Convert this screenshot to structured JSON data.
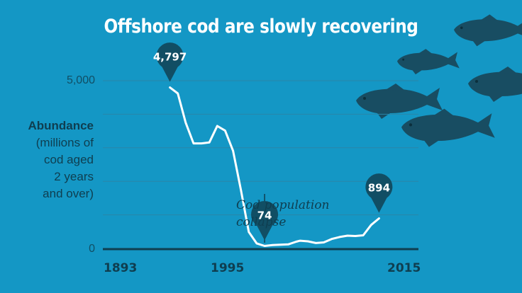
{
  "chart_data": {
    "type": "line",
    "title": "Offshore cod are slowly recovering",
    "ylabel_bold": "Abundance",
    "ylabel_lines": [
      "(millions of",
      "cod aged",
      "2 years",
      "and over)"
    ],
    "yticks": [
      "5,000",
      "0"
    ],
    "xticks": [
      "1893",
      "1995",
      "2015"
    ],
    "ylim": [
      0,
      5000
    ],
    "xlim": [
      1893,
      2015
    ],
    "grid": true,
    "series": [
      {
        "color": "#ffffff",
        "x": [
          1962,
          1964,
          1966,
          1968,
          1970,
          1972,
          1974,
          1976,
          1978,
          1980,
          1982,
          1984,
          1986,
          1988,
          1990,
          1992,
          1994,
          1995,
          1997,
          1999,
          2001,
          2003,
          2005,
          2007,
          2009,
          2011,
          2013,
          2015
        ],
        "y": [
          4797,
          4620,
          3750,
          3130,
          3130,
          3160,
          3650,
          3510,
          2910,
          1740,
          490,
          150,
          74,
          100,
          110,
          120,
          200,
          230,
          210,
          160,
          180,
          280,
          340,
          380,
          370,
          390,
          700,
          894
        ]
      }
    ],
    "callouts": [
      {
        "x": 1962,
        "y": 4797,
        "label": "4,797"
      },
      {
        "x": 1986,
        "y": 74,
        "label": "74"
      },
      {
        "x": 2015,
        "y": 894,
        "label": "894"
      }
    ],
    "annotation": {
      "x": 1986,
      "lines": [
        "Cod population",
        "collapse"
      ]
    }
  },
  "colors": {
    "background": "#1497c5",
    "line": "#ffffff",
    "callout": "#114e64",
    "text": "#0f3e50",
    "fish": "#184d62"
  }
}
